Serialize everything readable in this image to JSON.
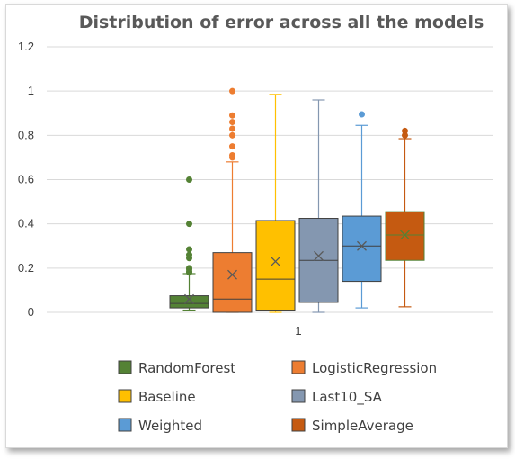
{
  "chart_data": {
    "type": "box",
    "title": "Distribution of error across all the models",
    "xlabel": "",
    "ylabel": "",
    "ylim": [
      0,
      1.2
    ],
    "yticks": [
      "0",
      "0.2",
      "0.4",
      "0.6",
      "0.8",
      "1",
      "1.2"
    ],
    "categories": [
      "1"
    ],
    "grid": true,
    "legend_position": "bottom",
    "series": [
      {
        "name": "RandomForest",
        "color": "#548235",
        "min": 0.01,
        "q1": 0.02,
        "median": 0.04,
        "q3": 0.075,
        "max": 0.175,
        "mean": 0.06,
        "outliers": [
          0.6,
          0.4,
          0.285,
          0.26,
          0.245,
          0.2,
          0.195,
          0.185,
          0.18
        ]
      },
      {
        "name": "LogisticRegression",
        "color": "#ED7D31",
        "min": 0.0,
        "q1": 0.0,
        "median": 0.06,
        "q3": 0.27,
        "max": 0.68,
        "mean": 0.17,
        "outliers": [
          1.0,
          0.89,
          0.86,
          0.83,
          0.8,
          0.75,
          0.71,
          0.7
        ]
      },
      {
        "name": "Baseline",
        "color": "#FFC000",
        "min": 0.0,
        "q1": 0.01,
        "median": 0.15,
        "q3": 0.415,
        "max": 0.985,
        "mean": 0.23,
        "outliers": []
      },
      {
        "name": "Last10_SA",
        "color": "#8497B0",
        "min": 0.0,
        "q1": 0.045,
        "median": 0.235,
        "q3": 0.425,
        "max": 0.96,
        "mean": 0.255,
        "outliers": []
      },
      {
        "name": "Weighted",
        "color": "#5B9BD5",
        "min": 0.02,
        "q1": 0.14,
        "median": 0.3,
        "q3": 0.435,
        "max": 0.845,
        "mean": 0.3,
        "outliers": [
          0.895
        ]
      },
      {
        "name": "SimpleAverage",
        "color": "#C55A11",
        "min": 0.025,
        "q1": 0.235,
        "median": 0.35,
        "q3": 0.455,
        "max": 0.785,
        "mean": 0.35,
        "outliers": [
          0.82,
          0.8
        ]
      }
    ]
  }
}
